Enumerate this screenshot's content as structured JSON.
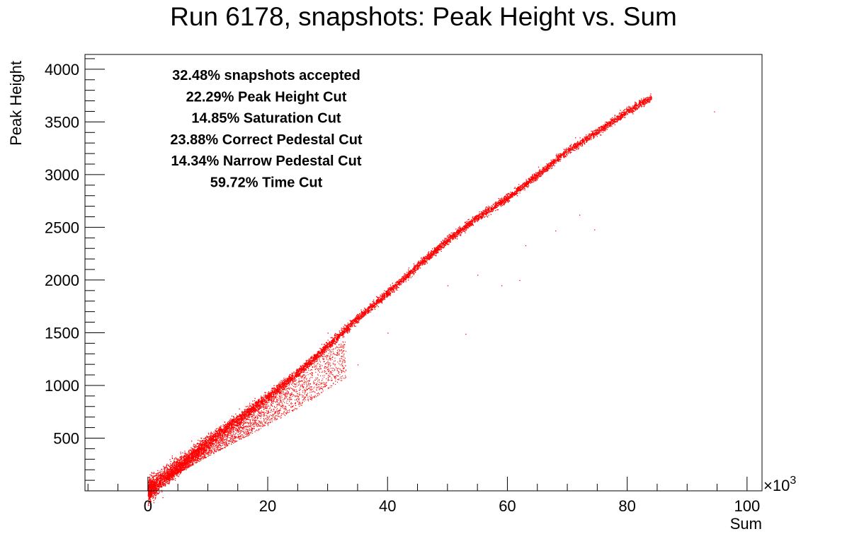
{
  "chart_data": {
    "type": "scatter",
    "title": "Run 6178, snapshots: Peak Height vs. Sum",
    "xlabel": "Sum",
    "ylabel": "Peak Height",
    "x_multiplier_label": "×10",
    "x_multiplier_exp": "3",
    "xlim": [
      -10.5,
      102.5
    ],
    "ylim": [
      0,
      4140
    ],
    "x_ticks": [
      0,
      20,
      40,
      60,
      80,
      100
    ],
    "x_tick_labels": [
      "0",
      "20",
      "40",
      "60",
      "80",
      "100"
    ],
    "y_ticks": [
      500,
      1000,
      1500,
      2000,
      2500,
      3000,
      3500,
      4000
    ],
    "y_tick_labels": [
      "500",
      "1000",
      "1500",
      "2000",
      "2500",
      "3000",
      "3500",
      "4000"
    ],
    "grid": false,
    "marker_color": "#ff0000",
    "stats_text": [
      "32.48% snapshots accepted",
      "22.29% Peak Height Cut",
      "14.85% Saturation Cut",
      "23.88% Correct Pedestal Cut",
      "14.34% Narrow Pedestal Cut",
      "59.72% Time Cut"
    ],
    "series": [
      {
        "description_points": [
          [
            0,
            0
          ],
          [
            5,
            240
          ],
          [
            10,
            470
          ],
          [
            15,
            680
          ],
          [
            20,
            890
          ],
          [
            25,
            1120
          ],
          [
            30,
            1380
          ],
          [
            35,
            1640
          ],
          [
            40,
            1880
          ],
          [
            45,
            2140
          ],
          [
            50,
            2380
          ],
          [
            55,
            2600
          ],
          [
            60,
            2780
          ],
          [
            65,
            3000
          ],
          [
            70,
            3230
          ],
          [
            75,
            3410
          ],
          [
            80,
            3600
          ],
          [
            84,
            3740
          ],
          [
            94.5,
            3600
          ]
        ],
        "values": [
          [
            5,
            180
          ],
          [
            10,
            360
          ],
          [
            15,
            560
          ],
          [
            20,
            740
          ],
          [
            25,
            900
          ],
          [
            30,
            1050
          ],
          [
            35,
            1200
          ],
          [
            30,
            1500
          ],
          [
            35,
            1600
          ],
          [
            40,
            1500
          ],
          [
            50,
            1950
          ],
          [
            55,
            2050
          ],
          [
            62,
            2000
          ],
          [
            72,
            2620
          ],
          [
            74.5,
            2480
          ],
          [
            68,
            2470
          ],
          [
            63,
            2330
          ],
          [
            53,
            1490
          ],
          [
            59,
            1950
          ]
        ]
      }
    ]
  }
}
